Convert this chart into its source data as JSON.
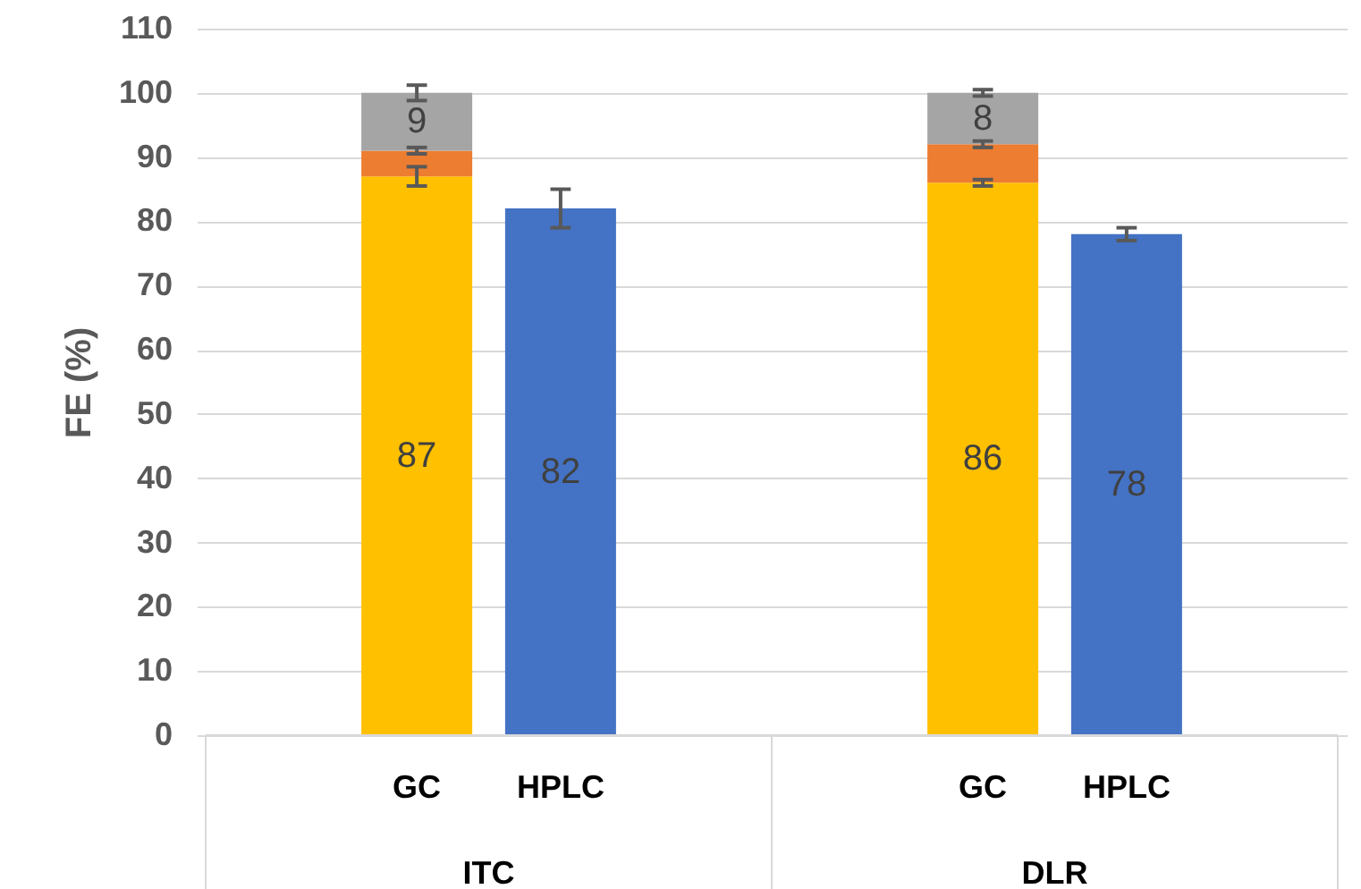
{
  "chart_data": {
    "type": "bar",
    "stacked": true,
    "ylabel": "FE (%)",
    "categories": [
      "GC",
      "HPLC",
      "GC",
      "HPLC"
    ],
    "series": [
      {
        "color": "#ffc000",
        "values": [
          87,
          null,
          86,
          null
        ],
        "value_labels": [
          "87",
          null,
          "86",
          null
        ],
        "errors": [
          1.5,
          null,
          0.5,
          null
        ]
      },
      {
        "color": "#ed7d31",
        "values": [
          4,
          null,
          6,
          null
        ],
        "errors": [
          0.5,
          null,
          0.5,
          null
        ]
      },
      {
        "color": "#a5a5a5",
        "values": [
          9,
          null,
          8,
          null
        ],
        "value_labels": [
          "9",
          null,
          "8",
          null
        ],
        "errors": [
          1.2,
          null,
          0.5,
          null
        ]
      },
      {
        "color": "#4472c4",
        "values": [
          null,
          82,
          null,
          78
        ],
        "value_labels": [
          null,
          "82",
          null,
          "78"
        ],
        "errors": [
          null,
          3,
          null,
          1
        ]
      }
    ],
    "annotations": [
      "ITC",
      "DLR"
    ],
    "ylim": [
      0,
      110
    ],
    "yticks": [
      0,
      10,
      20,
      30,
      40,
      50,
      60,
      70,
      80,
      90,
      100,
      110
    ],
    "grid": "y"
  }
}
